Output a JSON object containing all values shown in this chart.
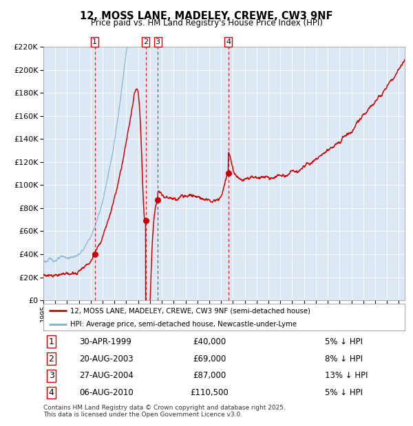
{
  "title": "12, MOSS LANE, MADELEY, CREWE, CW3 9NF",
  "subtitle": "Price paid vs. HM Land Registry's House Price Index (HPI)",
  "bg_color": "#dce9f5",
  "red_color": "#cc0000",
  "blue_color": "#7bafd4",
  "ylim": [
    0,
    220000
  ],
  "yticks": [
    0,
    20000,
    40000,
    60000,
    80000,
    100000,
    120000,
    140000,
    160000,
    180000,
    200000,
    220000
  ],
  "xmin": 1995,
  "xmax": 2025.5,
  "sales": [
    {
      "label": "1",
      "date": "30-APR-1999",
      "price": 40000,
      "year": 1999.33,
      "pct": "5% ↓ HPI"
    },
    {
      "label": "2",
      "date": "20-AUG-2003",
      "price": 69000,
      "year": 2003.63,
      "pct": "8% ↓ HPI"
    },
    {
      "label": "3",
      "date": "27-AUG-2004",
      "price": 87000,
      "year": 2004.65,
      "pct": "13% ↓ HPI"
    },
    {
      "label": "4",
      "date": "06-AUG-2010",
      "price": 110500,
      "year": 2010.6,
      "pct": "5% ↓ HPI"
    }
  ],
  "legend_line1": "12, MOSS LANE, MADELEY, CREWE, CW3 9NF (semi-detached house)",
  "legend_line2": "HPI: Average price, semi-detached house, Newcastle-under-Lyme",
  "footnote": "Contains HM Land Registry data © Crown copyright and database right 2025.\nThis data is licensed under the Open Government Licence v3.0."
}
